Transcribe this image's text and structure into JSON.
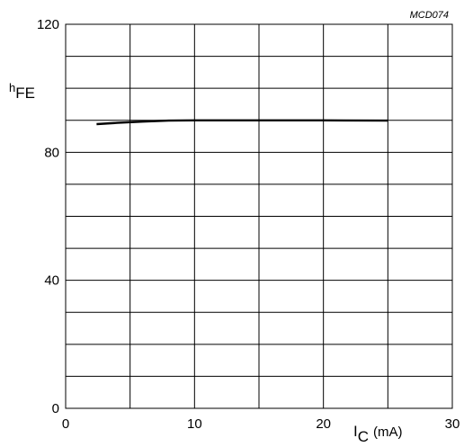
{
  "chart_data": {
    "type": "line",
    "figure_id": "MCD074",
    "title": "",
    "ylabel": {
      "main": "h",
      "sub": "FE"
    },
    "xlabel": {
      "main": "I",
      "sub": "C",
      "unit": "(mA)"
    },
    "xlim": [
      0,
      30
    ],
    "ylim": [
      0,
      120
    ],
    "x_ticks": [
      0,
      10,
      20,
      30
    ],
    "y_ticks": [
      0,
      40,
      80,
      120
    ],
    "x_minor_step": 5,
    "y_minor_step": 10,
    "grid": true,
    "legend": "none",
    "series": [
      {
        "x": [
          2.4,
          4,
          6,
          8,
          10,
          15,
          20,
          25
        ],
        "y": [
          88.8,
          89.2,
          89.6,
          89.9,
          90.0,
          90.0,
          90.0,
          89.9
        ]
      }
    ]
  }
}
